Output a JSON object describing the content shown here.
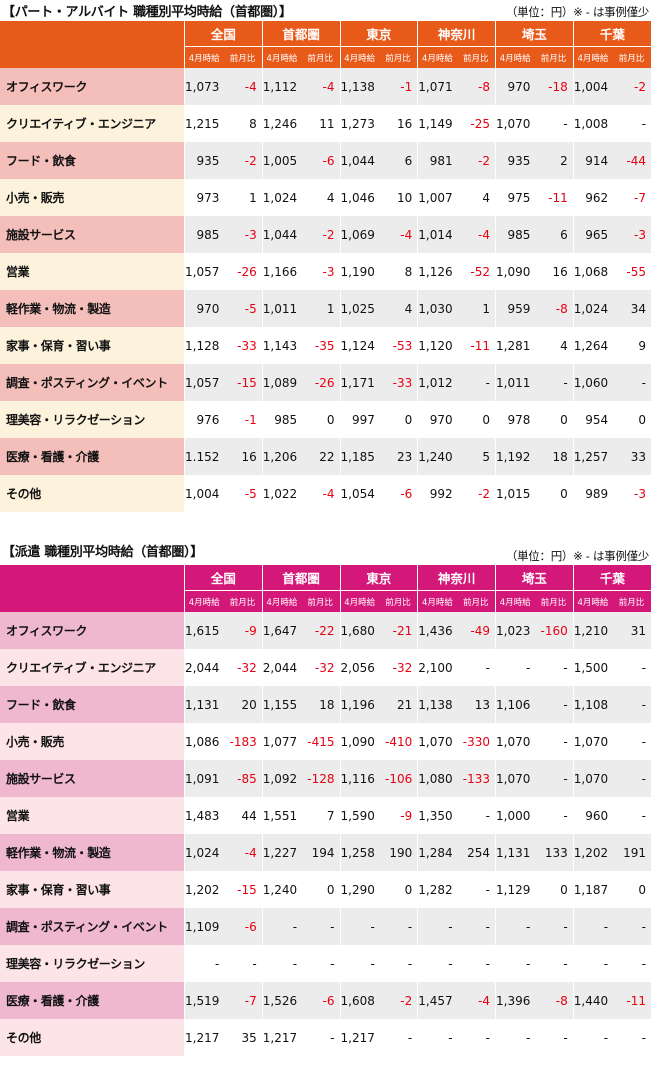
{
  "columns": [
    "全国",
    "首都圏",
    "東京",
    "神奈川",
    "埼玉",
    "千葉"
  ],
  "sub_headers": {
    "wage": "4月時給",
    "diff": "前月比"
  },
  "tables": [
    {
      "title": "【パート・アルバイト 職種別平均時給（首都圏）】",
      "unit_note": "（単位：円）※ - は事例僅少",
      "header_color": "#e85a1a",
      "row_colors": [
        "#f4bfbb",
        "#fdf3dc"
      ],
      "rows": [
        {
          "label": "オフィスワーク",
          "cells": [
            "1,073",
            "-4",
            "1,112",
            "-4",
            "1,138",
            "-1",
            "1,071",
            "-8",
            "970",
            "-18",
            "1,004",
            "-2"
          ]
        },
        {
          "label": "クリエイティブ・エンジニア",
          "cells": [
            "1,215",
            "8",
            "1,246",
            "11",
            "1,273",
            "16",
            "1,149",
            "-25",
            "1,070",
            "-",
            "1,008",
            "-"
          ]
        },
        {
          "label": "フード・飲食",
          "cells": [
            "935",
            "-2",
            "1,005",
            "-6",
            "1,044",
            "6",
            "981",
            "-2",
            "935",
            "2",
            "914",
            "-44"
          ]
        },
        {
          "label": "小売・販売",
          "cells": [
            "973",
            "1",
            "1,024",
            "4",
            "1,046",
            "10",
            "1,007",
            "4",
            "975",
            "-11",
            "962",
            "-7"
          ]
        },
        {
          "label": "施設サービス",
          "cells": [
            "985",
            "-3",
            "1,044",
            "-2",
            "1,069",
            "-4",
            "1,014",
            "-4",
            "985",
            "6",
            "965",
            "-3"
          ]
        },
        {
          "label": "営業",
          "cells": [
            "1,057",
            "-26",
            "1,166",
            "-3",
            "1,190",
            "8",
            "1,126",
            "-52",
            "1,090",
            "16",
            "1,068",
            "-55"
          ]
        },
        {
          "label": "軽作業・物流・製造",
          "cells": [
            "970",
            "-5",
            "1,011",
            "1",
            "1,025",
            "4",
            "1,030",
            "1",
            "959",
            "-8",
            "1,024",
            "34"
          ]
        },
        {
          "label": "家事・保育・習い事",
          "cells": [
            "1,128",
            "-33",
            "1,143",
            "-35",
            "1,124",
            "-53",
            "1,120",
            "-11",
            "1,281",
            "4",
            "1,264",
            "9"
          ]
        },
        {
          "label": "調査・ポスティング・イベント",
          "cells": [
            "1,057",
            "-15",
            "1,089",
            "-26",
            "1,171",
            "-33",
            "1,012",
            "-",
            "1,011",
            "-",
            "1,060",
            "-"
          ]
        },
        {
          "label": "理美容・リラクゼーション",
          "cells": [
            "976",
            "-1",
            "985",
            "0",
            "997",
            "0",
            "970",
            "0",
            "978",
            "0",
            "954",
            "0"
          ]
        },
        {
          "label": "医療・看護・介護",
          "cells": [
            "1.152",
            "16",
            "1,206",
            "22",
            "1,185",
            "23",
            "1,240",
            "5",
            "1,192",
            "18",
            "1,257",
            "33"
          ]
        },
        {
          "label": "その他",
          "cells": [
            "1,004",
            "-5",
            "1,022",
            "-4",
            "1,054",
            "-6",
            "992",
            "-2",
            "1,015",
            "0",
            "989",
            "-3"
          ]
        }
      ]
    },
    {
      "title": "【派遣 職種別平均時給（首都圏）】",
      "unit_note": "（単位：円）※ - は事例僅少",
      "header_color": "#d4187a",
      "row_colors": [
        "#f0b8cf",
        "#fce4e9"
      ],
      "rows": [
        {
          "label": "オフィスワーク",
          "cells": [
            "1,615",
            "-9",
            "1,647",
            "-22",
            "1,680",
            "-21",
            "1,436",
            "-49",
            "1,023",
            "-160",
            "1,210",
            "31"
          ]
        },
        {
          "label": "クリエイティブ・エンジニア",
          "cells": [
            "2,044",
            "-32",
            "2,044",
            "-32",
            "2,056",
            "-32",
            "2,100",
            "-",
            "-",
            "-",
            "1,500",
            "-"
          ]
        },
        {
          "label": "フード・飲食",
          "cells": [
            "1,131",
            "20",
            "1,155",
            "18",
            "1,196",
            "21",
            "1,138",
            "13",
            "1,106",
            "-",
            "1,108",
            "-"
          ]
        },
        {
          "label": "小売・販売",
          "cells": [
            "1,086",
            "-183",
            "1,077",
            "-415",
            "1,090",
            "-410",
            "1,070",
            "-330",
            "1,070",
            "-",
            "1,070",
            "-"
          ]
        },
        {
          "label": "施設サービス",
          "cells": [
            "1,091",
            "-85",
            "1,092",
            "-128",
            "1,116",
            "-106",
            "1,080",
            "-133",
            "1,070",
            "-",
            "1,070",
            "-"
          ]
        },
        {
          "label": "営業",
          "cells": [
            "1,483",
            "44",
            "1,551",
            "7",
            "1,590",
            "-9",
            "1,350",
            "-",
            "1,000",
            "-",
            "960",
            "-"
          ]
        },
        {
          "label": "軽作業・物流・製造",
          "cells": [
            "1,024",
            "-4",
            "1,227",
            "194",
            "1,258",
            "190",
            "1,284",
            "254",
            "1,131",
            "133",
            "1,202",
            "191"
          ]
        },
        {
          "label": "家事・保育・習い事",
          "cells": [
            "1,202",
            "-15",
            "1,240",
            "0",
            "1,290",
            "0",
            "1,282",
            "-",
            "1,129",
            "0",
            "1,187",
            "0"
          ]
        },
        {
          "label": "調査・ポスティング・イベント",
          "cells": [
            "1,109",
            "-6",
            "-",
            "-",
            "-",
            "-",
            "-",
            "-",
            "-",
            "-",
            "-",
            "-"
          ]
        },
        {
          "label": "理美容・リラクゼーション",
          "cells": [
            "-",
            "-",
            "-",
            "-",
            "-",
            "-",
            "-",
            "-",
            "-",
            "-",
            "-",
            "-"
          ]
        },
        {
          "label": "医療・看護・介護",
          "cells": [
            "1,519",
            "-7",
            "1,526",
            "-6",
            "1,608",
            "-2",
            "1,457",
            "-4",
            "1,396",
            "-8",
            "1,440",
            "-11"
          ]
        },
        {
          "label": "その他",
          "cells": [
            "1,217",
            "35",
            "1,217",
            "-",
            "1,217",
            "-",
            "-",
            "-",
            "-",
            "-",
            "-",
            "-"
          ]
        }
      ]
    }
  ]
}
